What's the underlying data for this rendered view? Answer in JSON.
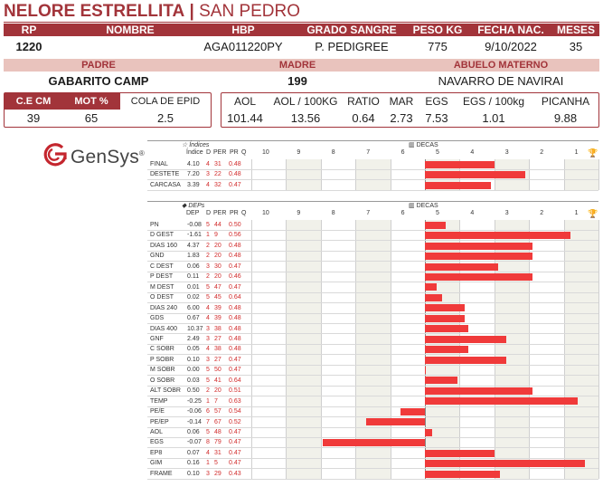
{
  "header": {
    "name": "NELORE ESTRELLITA",
    "separator": "|",
    "place": "SAN PEDRO"
  },
  "row1": {
    "headers": [
      "RP",
      "NOMBRE",
      "HBP",
      "GRADO SANGRE",
      "PESO KG",
      "FECHA NAC.",
      "MESES"
    ],
    "values": [
      "1220",
      "",
      "AGA011220PY",
      "P. PEDIGREE",
      "775",
      "9/10/2022",
      "35"
    ]
  },
  "row2": {
    "headers": [
      "PADRE",
      "MADRE",
      "ABUELO MATERNO"
    ],
    "values": [
      "GABARITO CAMP",
      "199",
      "NAVARRO DE NAVIRAI"
    ]
  },
  "box_left": {
    "headers": [
      "C.E CM",
      "MOT %",
      "COLA DE EPID"
    ],
    "values": [
      "39",
      "65",
      "2.5"
    ]
  },
  "box_right": {
    "headers": [
      "AOL",
      "AOL / 100KG",
      "RATIO",
      "MAR",
      "EGS",
      "EGS / 100kg",
      "PICANHA"
    ],
    "values": [
      "101.44",
      "13.56",
      "0.64",
      "2.73",
      "7.53",
      "1.01",
      "9.88"
    ]
  },
  "logo": {
    "text": "GenSys",
    "mark": "®",
    "icon": "gensys-logo-icon"
  },
  "indices_chart": {
    "section_icon": "star-icon",
    "section_label": "Índices",
    "decas_icon": "bar-chart-icon",
    "decas_label": "DECAS",
    "trophy_icon": "trophy-icon",
    "col_headers": [
      "Índice",
      "D",
      "PER",
      "PR",
      "Q"
    ],
    "deca_ticks": [
      "10",
      "9",
      "8",
      "7",
      "6",
      "5",
      "4",
      "3",
      "2",
      "1"
    ]
  },
  "deps_chart": {
    "section_icon": "tag-icon",
    "section_label": "DEPs",
    "decas_icon": "bar-chart-icon",
    "decas_label": "DECAS",
    "trophy_icon": "trophy-icon",
    "col_headers": [
      "DEP",
      "D",
      "PER",
      "PR",
      "Q"
    ],
    "deca_ticks": [
      "10",
      "9",
      "8",
      "7",
      "6",
      "5",
      "4",
      "3",
      "2",
      "1"
    ]
  },
  "chart_data": [
    {
      "type": "bar",
      "title": "Índices",
      "x_axis": "DECAS",
      "xlim": [
        -3,
        4.5
      ],
      "columns": [
        "Índice",
        "D",
        "PER",
        "PR"
      ],
      "rows": [
        {
          "label": "FINAL",
          "value": "4.10",
          "d": "4",
          "per": "31",
          "pr": "0.48",
          "bar": 2.0
        },
        {
          "label": "DESTETE",
          "value": "7.20",
          "d": "3",
          "per": "22",
          "pr": "0.48",
          "bar": 2.9
        },
        {
          "label": "CARCASA",
          "value": "3.39",
          "d": "4",
          "per": "32",
          "pr": "0.47",
          "bar": 1.9
        }
      ],
      "colors": {
        "bar": "#f03a3a"
      }
    },
    {
      "type": "bar",
      "title": "DEPs",
      "x_axis": "DECAS",
      "xlim": [
        -3,
        4.5
      ],
      "columns": [
        "DEP",
        "D",
        "PER",
        "PR"
      ],
      "rows": [
        {
          "label": "PN",
          "value": "-0.08",
          "d": "5",
          "per": "44",
          "pr": "0.50",
          "bar": 0.6
        },
        {
          "label": "D GEST",
          "value": "-1.61",
          "d": "1",
          "per": "9",
          "pr": "0.56",
          "bar": 4.2
        },
        {
          "label": "DIAS 160",
          "value": "4.37",
          "d": "2",
          "per": "20",
          "pr": "0.48",
          "bar": 3.1
        },
        {
          "label": "GND",
          "value": "1.83",
          "d": "2",
          "per": "20",
          "pr": "0.48",
          "bar": 3.1
        },
        {
          "label": "C DEST",
          "value": "0.06",
          "d": "3",
          "per": "30",
          "pr": "0.47",
          "bar": 2.1
        },
        {
          "label": "P DEST",
          "value": "0.11",
          "d": "2",
          "per": "20",
          "pr": "0.46",
          "bar": 3.1
        },
        {
          "label": "M DEST",
          "value": "0.01",
          "d": "5",
          "per": "47",
          "pr": "0.47",
          "bar": 0.35
        },
        {
          "label": "O DEST",
          "value": "0.02",
          "d": "5",
          "per": "45",
          "pr": "0.64",
          "bar": 0.5
        },
        {
          "label": "DIAS 240",
          "value": "6.00",
          "d": "4",
          "per": "39",
          "pr": "0.48",
          "bar": 1.15
        },
        {
          "label": "GDS",
          "value": "0.67",
          "d": "4",
          "per": "39",
          "pr": "0.48",
          "bar": 1.15
        },
        {
          "label": "DIAS 400",
          "value": "10.37",
          "d": "3",
          "per": "38",
          "pr": "0.48",
          "bar": 1.25
        },
        {
          "label": "GNF",
          "value": "2.49",
          "d": "3",
          "per": "27",
          "pr": "0.48",
          "bar": 2.35
        },
        {
          "label": "C SOBR",
          "value": "0.05",
          "d": "4",
          "per": "38",
          "pr": "0.48",
          "bar": 1.25
        },
        {
          "label": "P SOBR",
          "value": "0.10",
          "d": "3",
          "per": "27",
          "pr": "0.47",
          "bar": 2.35
        },
        {
          "label": "M SOBR",
          "value": "0.00",
          "d": "5",
          "per": "50",
          "pr": "0.47",
          "bar": 0.0
        },
        {
          "label": "O SOBR",
          "value": "0.03",
          "d": "5",
          "per": "41",
          "pr": "0.64",
          "bar": 0.95
        },
        {
          "label": "ALT SOBR",
          "value": "0.50",
          "d": "2",
          "per": "20",
          "pr": "0.51",
          "bar": 3.1
        },
        {
          "label": "TEMP",
          "value": "-0.25",
          "d": "1",
          "per": "7",
          "pr": "0.63",
          "bar": 4.4
        },
        {
          "label": "PE/E",
          "value": "-0.06",
          "d": "6",
          "per": "57",
          "pr": "0.54",
          "bar": -0.7
        },
        {
          "label": "PE/EP",
          "value": "-0.14",
          "d": "7",
          "per": "67",
          "pr": "0.52",
          "bar": -1.7
        },
        {
          "label": "AOL",
          "value": "0.06",
          "d": "5",
          "per": "48",
          "pr": "0.47",
          "bar": 0.2
        },
        {
          "label": "EGS",
          "value": "-0.07",
          "d": "8",
          "per": "79",
          "pr": "0.47",
          "bar": -2.95
        },
        {
          "label": "EP8",
          "value": "0.07",
          "d": "4",
          "per": "31",
          "pr": "0.47",
          "bar": 2.0
        },
        {
          "label": "GIM",
          "value": "0.16",
          "d": "1",
          "per": "5",
          "pr": "0.47",
          "bar": 4.6
        },
        {
          "label": "FRAME",
          "value": "0.10",
          "d": "3",
          "per": "29",
          "pr": "0.43",
          "bar": 2.15
        }
      ],
      "colors": {
        "bar": "#f03a3a"
      }
    }
  ]
}
